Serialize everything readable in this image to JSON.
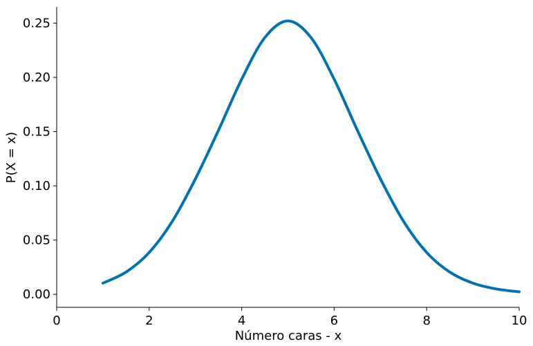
{
  "chart_data": {
    "type": "line",
    "title": "",
    "xlabel": "Número caras - x",
    "ylabel": "P(X = x)",
    "xlim": [
      0,
      10
    ],
    "ylim": [
      -0.012,
      0.265
    ],
    "xticks": [
      0,
      2,
      4,
      6,
      8,
      10
    ],
    "xtick_labels": [
      "0",
      "2",
      "4",
      "6",
      "8",
      "10"
    ],
    "yticks": [
      0.0,
      0.05,
      0.1,
      0.15,
      0.2,
      0.25
    ],
    "ytick_labels": [
      "0.00",
      "0.05",
      "0.10",
      "0.15",
      "0.20",
      "0.25"
    ],
    "grid": false,
    "series": [
      {
        "color": "#0072B2",
        "x": [
          1.0,
          1.5,
          2.0,
          2.5,
          3.0,
          3.5,
          4.0,
          4.5,
          5.0,
          5.5,
          6.0,
          6.5,
          7.0,
          7.5,
          8.0,
          8.5,
          9.0,
          9.5,
          10.0
        ],
        "y": [
          0.0103,
          0.0205,
          0.0386,
          0.0673,
          0.1065,
          0.1514,
          0.1983,
          0.2367,
          0.2521,
          0.2367,
          0.1983,
          0.1514,
          0.1065,
          0.0673,
          0.0386,
          0.0205,
          0.0103,
          0.005,
          0.0023
        ]
      }
    ]
  }
}
